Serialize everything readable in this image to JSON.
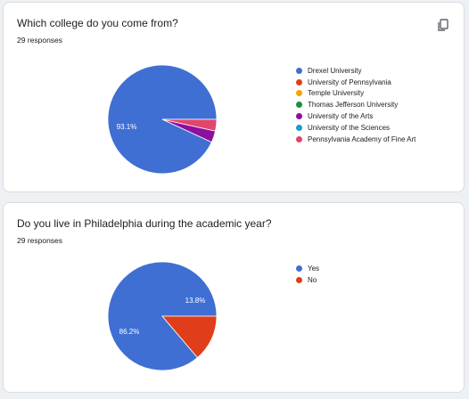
{
  "cards": [
    {
      "question": "Which college do you come from?",
      "responses": "29 responses",
      "copy_icon": "copy-chart-icon"
    },
    {
      "question": "Do you live in Philadelphia during the academic year?",
      "responses": "29 responses"
    }
  ],
  "chart_data": [
    {
      "type": "pie",
      "title": "Which college do you come from?",
      "categories": [
        "Drexel University",
        "University of Pennsylvania",
        "Temple University",
        "Thomas Jefferson University",
        "University of the Arts",
        "University of the Sciences",
        "Pennsylvania Academy of Fine Art"
      ],
      "values": [
        93.1,
        0,
        0,
        0,
        3.45,
        0,
        3.45
      ],
      "colors": [
        "#3f6fd3",
        "#e03e1a",
        "#f4a300",
        "#1a8f3a",
        "#8e0f9e",
        "#1a9ad6",
        "#e2456f"
      ],
      "data_labels": [
        "93.1%",
        "",
        "",
        "",
        "",
        "",
        ""
      ],
      "legend_position": "right"
    },
    {
      "type": "pie",
      "title": "Do you live in Philadelphia during the academic year?",
      "categories": [
        "Yes",
        "No"
      ],
      "values": [
        86.2,
        13.8
      ],
      "colors": [
        "#3f6fd3",
        "#e03e1a"
      ],
      "data_labels": [
        "86.2%",
        "13.8%"
      ],
      "legend_position": "right"
    }
  ]
}
